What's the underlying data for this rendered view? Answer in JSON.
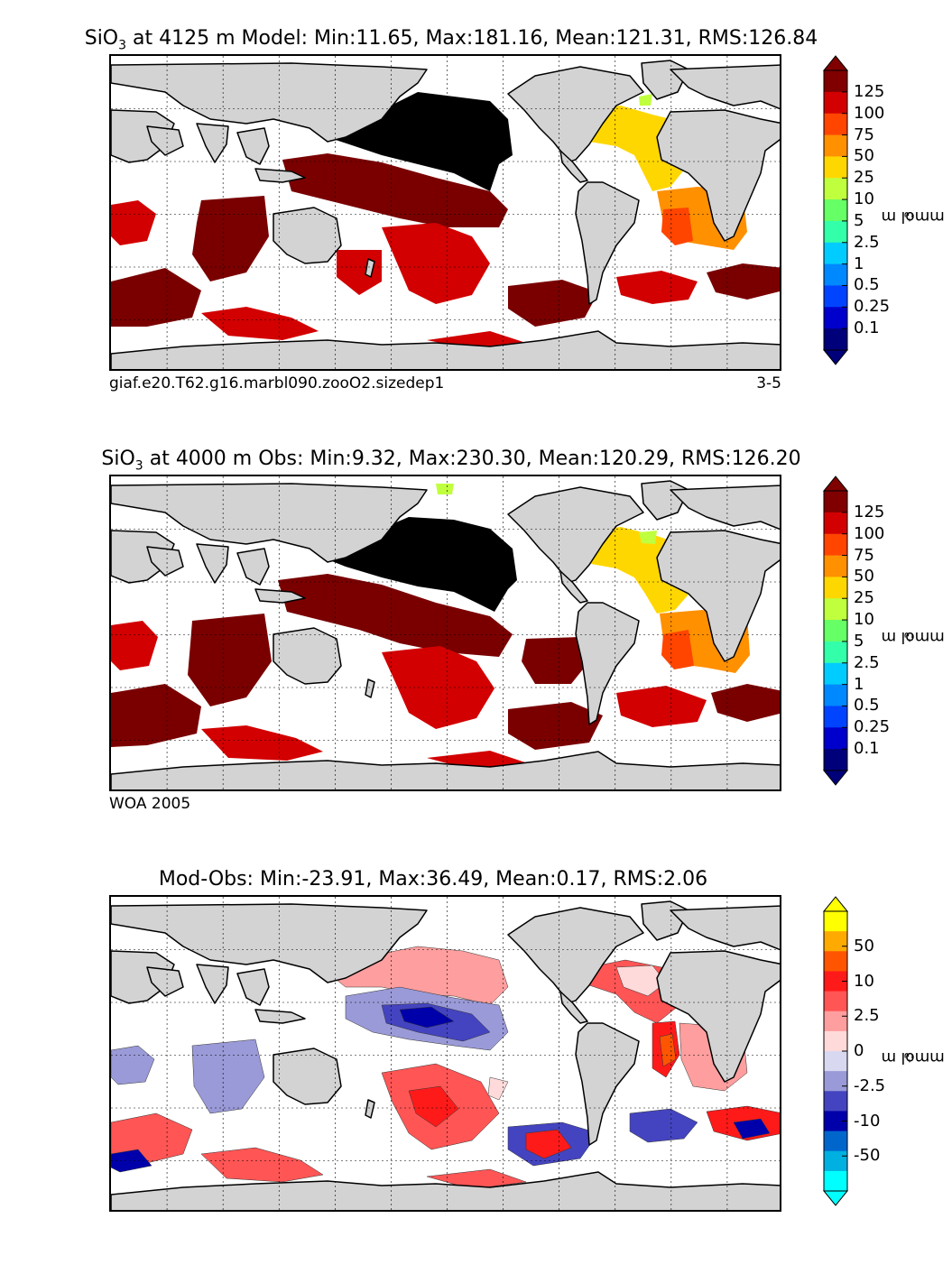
{
  "panels": [
    {
      "title_prefix": "SiO",
      "title_sub": "3",
      "title_suffix": " at 4125 m Model: Min:11.65, Max:181.16, Mean:121.31, RMS:126.84",
      "note_left": "giaf.e20.T62.g16.marbl090.zooO2.sizedep1",
      "note_right": "3-5",
      "colorbar": {
        "ticks": [
          "125",
          "100",
          "75",
          "50",
          "25",
          "10",
          "5",
          "2.5",
          "1",
          "0.5",
          "0.25",
          "0.1"
        ],
        "colors": [
          "#800000",
          "#d20000",
          "#ff4500",
          "#ff9000",
          "#ffd700",
          "#c0ff3e",
          "#66ff66",
          "#33ffaa",
          "#00ccff",
          "#0088ff",
          "#0044ff",
          "#0000cc",
          "#00007a"
        ],
        "unit": "mmol m",
        "unit_exp": "-3"
      }
    },
    {
      "title_prefix": "SiO",
      "title_sub": "3",
      "title_suffix": " at 4000 m Obs: Min:9.32, Max:230.30, Mean:120.29, RMS:126.20",
      "note_left": "WOA 2005",
      "note_right": "",
      "colorbar": {
        "ticks": [
          "125",
          "100",
          "75",
          "50",
          "25",
          "10",
          "5",
          "2.5",
          "1",
          "0.5",
          "0.25",
          "0.1"
        ],
        "colors": [
          "#800000",
          "#d20000",
          "#ff4500",
          "#ff9000",
          "#ffd700",
          "#c0ff3e",
          "#66ff66",
          "#33ffaa",
          "#00ccff",
          "#0088ff",
          "#0044ff",
          "#0000cc",
          "#00007a"
        ],
        "unit": "mmol m",
        "unit_exp": "-3"
      }
    },
    {
      "title_prefix": "Mod-Obs: Min:-23.91, Max:36.49, Mean:0.17, RMS:2.06",
      "title_sub": "",
      "title_suffix": "",
      "note_left": "",
      "note_right": "",
      "colorbar": {
        "ticks": [
          "50",
          "10",
          "2.5",
          "0",
          "-2.5",
          "-10",
          "-50"
        ],
        "colors": [
          "#ffff00",
          "#ffaa00",
          "#ff5500",
          "#ff1a1a",
          "#ff5555",
          "#ff9e9e",
          "#ffdada",
          "#d8d8f0",
          "#9a9ad8",
          "#4444c0",
          "#0000aa",
          "#0066cc",
          "#00b0e0",
          "#00ffff"
        ],
        "unit": "mmol m",
        "unit_exp": "-3"
      }
    }
  ],
  "chart_data": [
    {
      "type": "heatmap",
      "title": "SiO3 at 4125 m Model: Min:11.65, Max:181.16, Mean:121.31, RMS:126.84",
      "variable": "SiO3",
      "depth_m": 4125,
      "source": "Model",
      "stats": {
        "min": 11.65,
        "max": 181.16,
        "mean": 121.31,
        "rms": 126.84
      },
      "colorbar_levels": [
        0.1,
        0.25,
        0.5,
        1,
        2.5,
        5,
        10,
        25,
        50,
        75,
        100,
        125
      ],
      "colorbar_unit": "mmol m^-3",
      "regions": [
        {
          "region": "North Pacific",
          "level": ">125 (black)"
        },
        {
          "region": "Central / West Pacific",
          "level": "125"
        },
        {
          "region": "Indian Ocean",
          "level": "125"
        },
        {
          "region": "South Pacific",
          "level": "100"
        },
        {
          "region": "Southern Ocean",
          "level": "100-125"
        },
        {
          "region": "North Atlantic",
          "level": "25"
        },
        {
          "region": "South Atlantic",
          "level": "50-75"
        }
      ]
    },
    {
      "type": "heatmap",
      "title": "SiO3 at 4000 m Obs: Min:9.32, Max:230.30, Mean:120.29, RMS:126.20",
      "variable": "SiO3",
      "depth_m": 4000,
      "source": "WOA 2005",
      "stats": {
        "min": 9.32,
        "max": 230.3,
        "mean": 120.29,
        "rms": 126.2
      },
      "colorbar_levels": [
        0.1,
        0.25,
        0.5,
        1,
        2.5,
        5,
        10,
        25,
        50,
        75,
        100,
        125
      ],
      "colorbar_unit": "mmol m^-3",
      "regions": [
        {
          "region": "North Pacific",
          "level": ">125 (black)"
        },
        {
          "region": "Central / West Pacific",
          "level": "125"
        },
        {
          "region": "Indian Ocean",
          "level": "100-125"
        },
        {
          "region": "South Pacific",
          "level": "100"
        },
        {
          "region": "Southern Ocean",
          "level": "100-125"
        },
        {
          "region": "North Atlantic",
          "level": "25"
        },
        {
          "region": "South Atlantic",
          "level": "50-75"
        }
      ]
    },
    {
      "type": "heatmap",
      "title": "Mod-Obs: Min:-23.91, Max:36.49, Mean:0.17, RMS:2.06",
      "stats": {
        "min": -23.91,
        "max": 36.49,
        "mean": 0.17,
        "rms": 2.06
      },
      "colorbar_levels": [
        -50,
        -10,
        -2.5,
        0,
        2.5,
        10,
        50
      ],
      "colorbar_unit": "mmol m^-3",
      "regions": [
        {
          "region": "Central Pacific",
          "sign": "negative"
        },
        {
          "region": "South Pacific",
          "sign": "positive"
        },
        {
          "region": "Southern Ocean",
          "sign": "mixed"
        },
        {
          "region": "North Atlantic",
          "sign": "positive"
        },
        {
          "region": "South Atlantic",
          "sign": "positive"
        },
        {
          "region": "Indian Ocean",
          "sign": "mixed"
        }
      ]
    }
  ]
}
